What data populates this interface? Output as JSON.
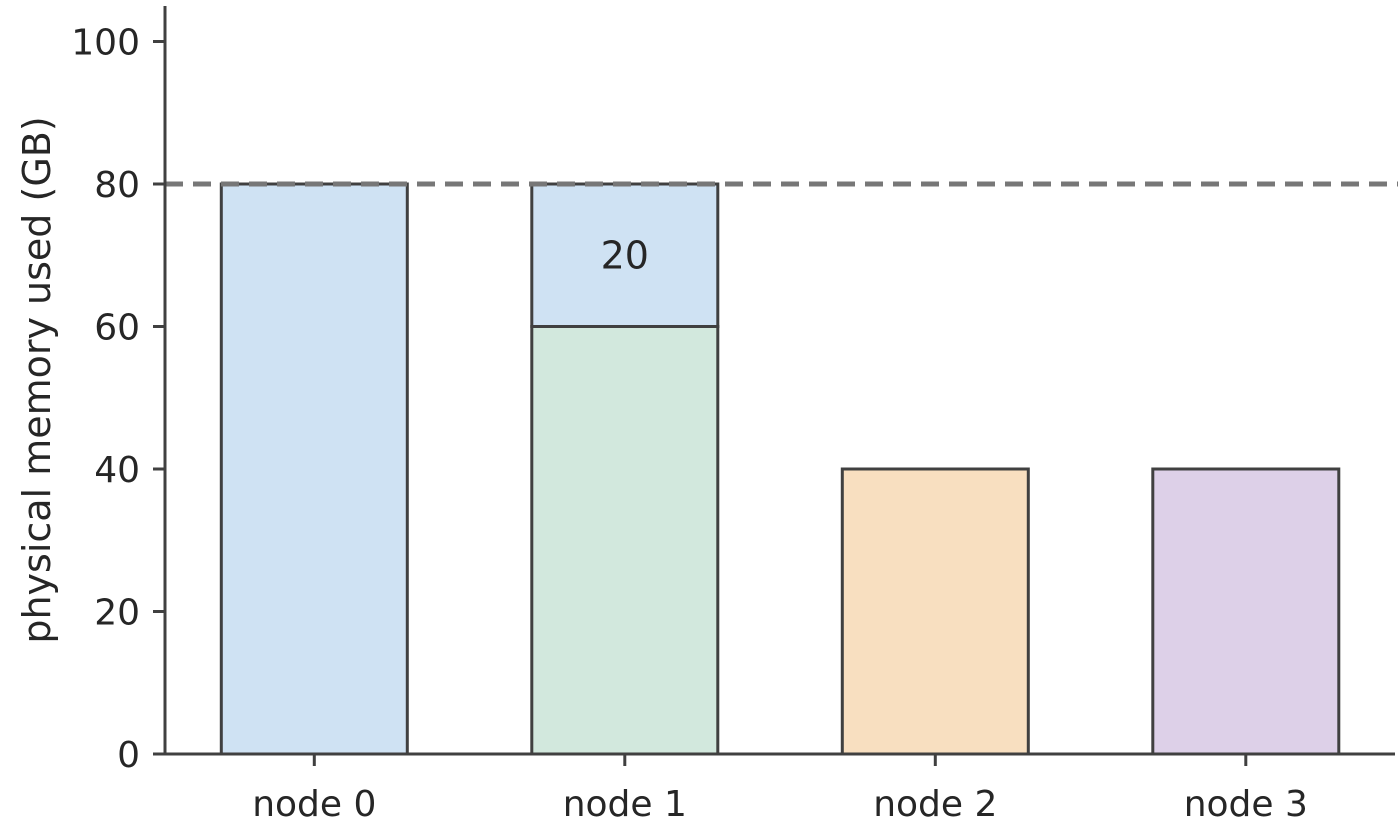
{
  "chart_data": {
    "type": "bar",
    "stacked": true,
    "categories": [
      "node 0",
      "node 1",
      "node 2",
      "node 3"
    ],
    "xlabel": "",
    "ylabel": "physical memory used (GB)",
    "ylim": [
      0,
      105
    ],
    "yticks": [
      "0",
      "20",
      "40",
      "60",
      "80",
      "100"
    ],
    "grid": false,
    "reference_line": {
      "y": 80,
      "style": "dashed",
      "color": "#777777"
    },
    "bars": [
      {
        "category": "node 0",
        "segments": [
          {
            "start": 0,
            "value": 80,
            "color": "#cfe2f3"
          }
        ]
      },
      {
        "category": "node 1",
        "segments": [
          {
            "start": 0,
            "value": 60,
            "color": "#d2e8dd"
          },
          {
            "start": 60,
            "value": 20,
            "color": "#cfe2f3",
            "label": "20"
          }
        ]
      },
      {
        "category": "node 2",
        "segments": [
          {
            "start": 0,
            "value": 40,
            "color": "#f8dfc0"
          }
        ]
      },
      {
        "category": "node 3",
        "segments": [
          {
            "start": 0,
            "value": 40,
            "color": "#ddd0e8"
          }
        ]
      }
    ]
  }
}
